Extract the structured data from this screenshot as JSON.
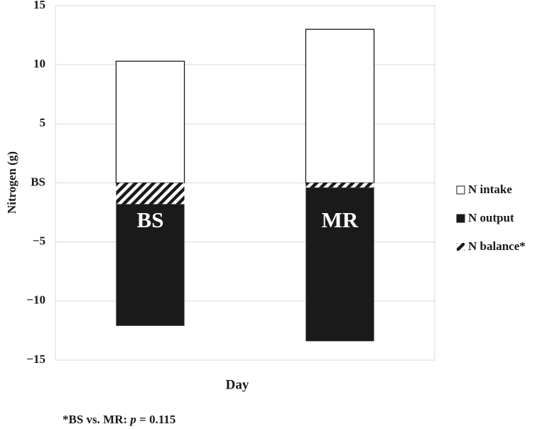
{
  "chart_data": {
    "type": "stacked-bar",
    "y_label": "Nitrogen (g)",
    "x_label": "Day",
    "categories": [
      "BS",
      "MR"
    ],
    "series": [
      {
        "name": "N intake",
        "color": "#ffffff",
        "values": [
          10.3,
          13.0
        ]
      },
      {
        "name": "N output",
        "color": "#1a1a1a",
        "values": [
          -10.3,
          -13.0
        ]
      },
      {
        "name": "N balance*",
        "color": "#1a1a1a",
        "pattern": "hatch",
        "values": [
          -1.8,
          -0.4
        ]
      }
    ],
    "ylim": [
      -15,
      15
    ],
    "yticks": [
      {
        "value": -15,
        "label": "−15"
      },
      {
        "value": -10,
        "label": "−10"
      },
      {
        "value": -5,
        "label": "−5"
      },
      {
        "value": 0,
        "label": "BS"
      },
      5,
      10,
      15
    ],
    "grid": true,
    "legend": "right",
    "footnote": {
      "prefix": "*BS vs. MR: ",
      "italic": "p",
      "suffix": " = 0.115"
    }
  }
}
